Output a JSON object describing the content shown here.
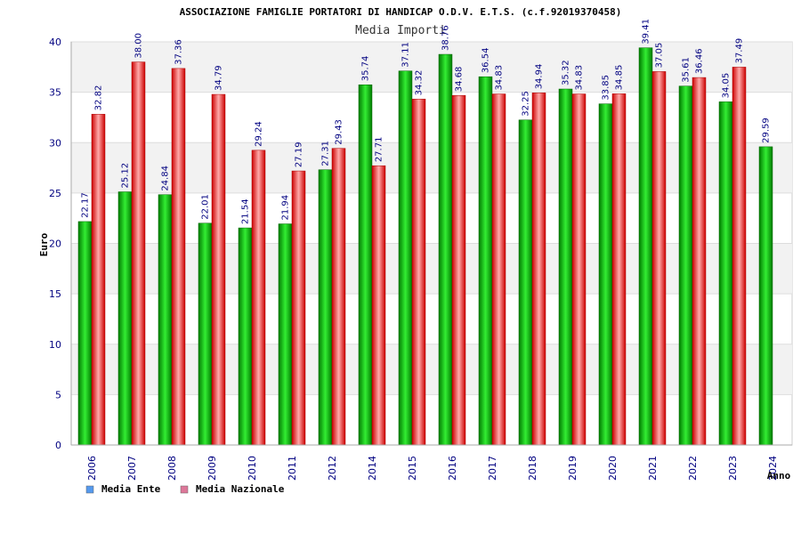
{
  "chart_data": {
    "type": "bar",
    "title": "ASSOCIAZIONE FAMIGLIE PORTATORI DI HANDICAP O.D.V. E.T.S. (c.f.92019370458)",
    "subtitle": "Media Importi",
    "xlabel": "Anno",
    "ylabel": "Euro",
    "ylim": [
      0,
      40
    ],
    "yticks": [
      "0",
      "5",
      "10",
      "15",
      "20",
      "25",
      "30",
      "35",
      "40"
    ],
    "grid": true,
    "legend_position": "bottom-left",
    "categories": [
      "2006",
      "2007",
      "2008",
      "2009",
      "2010",
      "2011",
      "2012",
      "2014",
      "2015",
      "2016",
      "2017",
      "2018",
      "2019",
      "2020",
      "2021",
      "2022",
      "2023",
      "2024"
    ],
    "series": [
      {
        "name": "Media Ente",
        "color": "#00bb00",
        "values": [
          22.17,
          25.12,
          24.84,
          22.01,
          21.54,
          21.94,
          27.31,
          35.74,
          37.11,
          38.76,
          36.54,
          32.25,
          35.32,
          33.85,
          39.41,
          35.61,
          34.05,
          29.59
        ],
        "labels": [
          "22.17",
          "25.12",
          "24.84",
          "22.01",
          "21.54",
          "21.94",
          "27.31",
          "35.74",
          "37.11",
          "38.76",
          "36.54",
          "32.25",
          "35.32",
          "33.85",
          "39.41",
          "35.61",
          "34.05",
          "29.59"
        ]
      },
      {
        "name": "Media Nazionale",
        "color": "#ee2222",
        "values": [
          32.82,
          38.0,
          37.36,
          34.79,
          29.24,
          27.19,
          29.43,
          27.71,
          34.32,
          34.68,
          34.83,
          34.94,
          34.83,
          34.85,
          37.05,
          36.46,
          37.49,
          null
        ],
        "labels": [
          "32.82",
          "38.00",
          "37.36",
          "34.79",
          "29.24",
          "27.19",
          "29.43",
          "27.71",
          "34.32",
          "34.68",
          "34.83",
          "34.94",
          "34.83",
          "34.85",
          "37.05",
          "36.46",
          "37.49",
          ""
        ]
      }
    ],
    "legend": [
      {
        "label": "Media Ente",
        "color": "#5599ee"
      },
      {
        "label": "Media Nazionale",
        "color": "#dd7799"
      }
    ]
  }
}
